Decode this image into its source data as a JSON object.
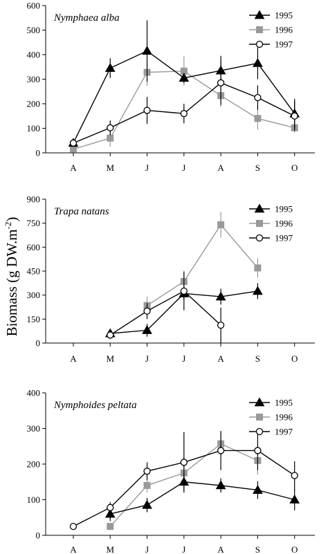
{
  "ylabel": "Biomass (g DW.m",
  "ylabel_sup": "-2",
  "ylabel_end": ")",
  "chart_data": [
    {
      "type": "line",
      "title": "Nymphaea alba",
      "categories": [
        "A",
        "M",
        "J",
        "J",
        "A",
        "S",
        "O"
      ],
      "ylim": [
        0,
        600
      ],
      "yticks": [
        0,
        100,
        200,
        300,
        400,
        500,
        600
      ],
      "legend_position": "top-right",
      "series": [
        {
          "name": "1995",
          "marker": "triangle",
          "color": "#000000",
          "values": [
            40,
            345,
            415,
            305,
            335,
            365,
            160
          ],
          "errors": [
            null,
            40,
            125,
            20,
            60,
            65,
            60
          ]
        },
        {
          "name": "1996",
          "marker": "square",
          "color": "#999999",
          "values": [
            15,
            60,
            328,
            333,
            233,
            140,
            102
          ],
          "errors": [
            null,
            35,
            55,
            60,
            45,
            45,
            20
          ]
        },
        {
          "name": "1997",
          "marker": "circle",
          "color": "#000000",
          "values": [
            40,
            102,
            173,
            160,
            285,
            225,
            150
          ],
          "errors": [
            null,
            30,
            55,
            40,
            90,
            50,
            60
          ]
        }
      ]
    },
    {
      "type": "line",
      "title": "Trapa natans",
      "categories": [
        "A",
        "M",
        "J",
        "J",
        "A",
        "S",
        "O"
      ],
      "ylim": [
        0,
        900
      ],
      "yticks": [
        0,
        150,
        300,
        450,
        600,
        750,
        900
      ],
      "legend_position": "top-right",
      "series": [
        {
          "name": "1995",
          "marker": "triangle",
          "color": "#000000",
          "values": [
            null,
            60,
            80,
            310,
            290,
            325,
            null
          ],
          "errors": [
            null,
            20,
            40,
            40,
            50,
            50,
            null
          ]
        },
        {
          "name": "1996",
          "marker": "square",
          "color": "#999999",
          "values": [
            null,
            null,
            235,
            385,
            740,
            470,
            null
          ],
          "errors": [
            null,
            null,
            55,
            70,
            80,
            60,
            null
          ]
        },
        {
          "name": "1997",
          "marker": "circle",
          "color": "#000000",
          "values": [
            null,
            50,
            200,
            325,
            112,
            null,
            null
          ],
          "errors": [
            null,
            20,
            50,
            120,
            110,
            null,
            null
          ]
        }
      ]
    },
    {
      "type": "line",
      "title": "Nymphoides peltata",
      "categories": [
        "A",
        "M",
        "J",
        "J",
        "A",
        "S",
        "O"
      ],
      "ylim": [
        0,
        400
      ],
      "yticks": [
        0,
        100,
        200,
        300,
        400
      ],
      "legend_position": "top-right",
      "series": [
        {
          "name": "1995",
          "marker": "triangle",
          "color": "#000000",
          "values": [
            null,
            60,
            85,
            150,
            140,
            127,
            100
          ],
          "errors": [
            null,
            20,
            20,
            25,
            20,
            25,
            30
          ]
        },
        {
          "name": "1996",
          "marker": "square",
          "color": "#999999",
          "values": [
            null,
            25,
            140,
            175,
            257,
            210,
            null
          ],
          "errors": [
            null,
            10,
            20,
            30,
            35,
            40,
            null
          ]
        },
        {
          "name": "1997",
          "marker": "circle",
          "color": "#000000",
          "values": [
            25,
            78,
            180,
            205,
            238,
            238,
            168
          ],
          "errors": [
            null,
            15,
            25,
            85,
            55,
            55,
            40
          ]
        }
      ]
    }
  ]
}
